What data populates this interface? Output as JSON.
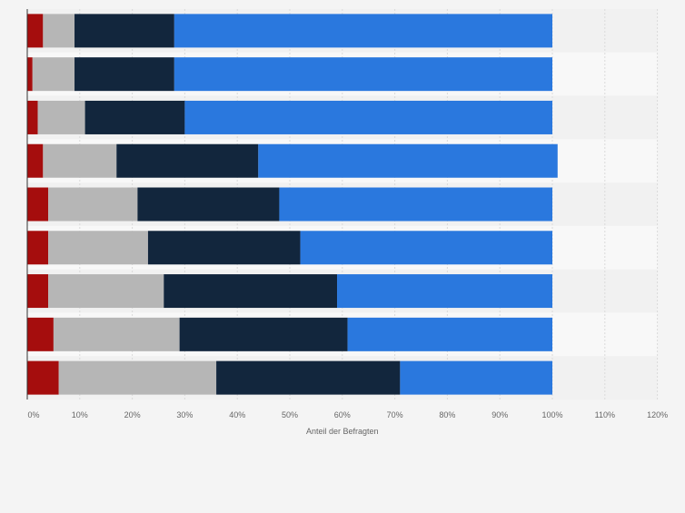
{
  "chart_data": {
    "type": "bar",
    "orientation": "horizontal",
    "stacked": true,
    "xlabel": "Anteil der Befragten",
    "ylabel": "",
    "xlim": [
      0,
      120
    ],
    "x_ticks": [
      "0%",
      "10%",
      "20%",
      "30%",
      "40%",
      "50%",
      "60%",
      "70%",
      "80%",
      "90%",
      "100%",
      "110%",
      "120%"
    ],
    "grid": true,
    "legend": "none",
    "categories": [
      "",
      "",
      "",
      "",
      "",
      "",
      "",
      "",
      ""
    ],
    "series": [
      {
        "color": "#a50d0d",
        "values": [
          3,
          1,
          2,
          3,
          4,
          4,
          4,
          5,
          6
        ]
      },
      {
        "color": "#b6b6b6",
        "values": [
          6,
          8,
          9,
          14,
          17,
          19,
          22,
          24,
          30
        ]
      },
      {
        "color": "#12263d",
        "values": [
          19,
          19,
          19,
          27,
          27,
          29,
          33,
          32,
          35
        ]
      },
      {
        "color": "#2a78de",
        "values": [
          72,
          72,
          70,
          57,
          52,
          48,
          41,
          39,
          29
        ]
      }
    ]
  }
}
